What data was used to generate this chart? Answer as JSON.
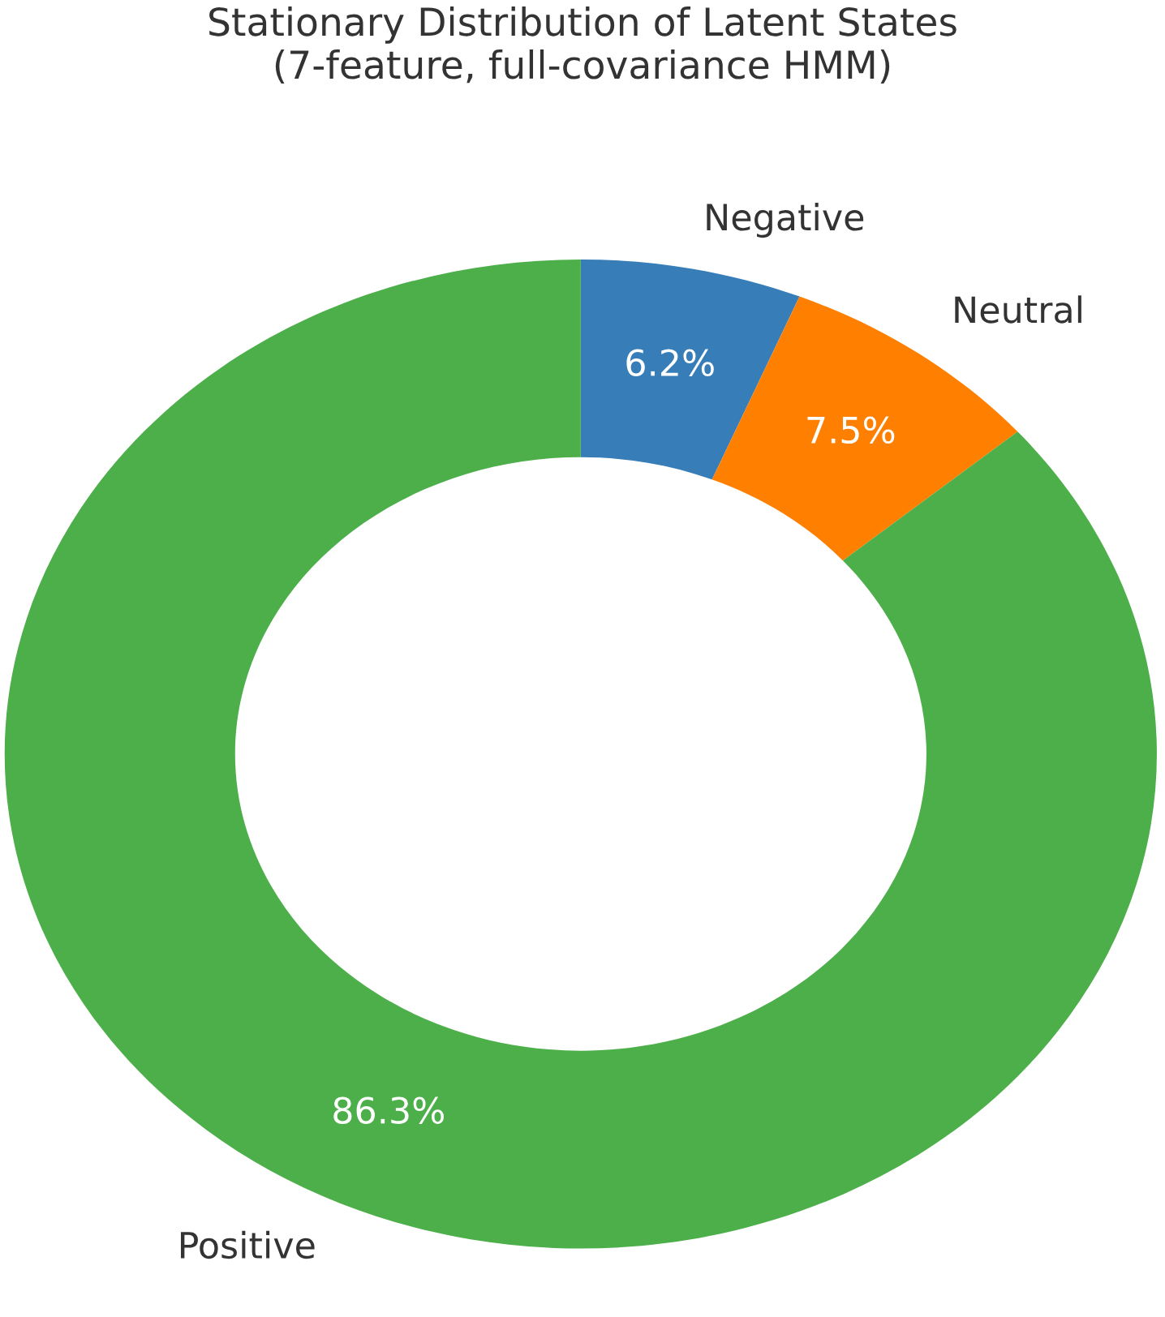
{
  "chart_data": {
    "type": "donut",
    "title": "Stationary Distribution of Latent States\n(7-feature, full-covariance HMM)",
    "categories": [
      "Negative",
      "Neutral",
      "Positive"
    ],
    "values": [
      6.2,
      7.5,
      86.3
    ],
    "colors": [
      "#377eb8",
      "#ff7f00",
      "#4daf4a"
    ],
    "value_labels": [
      "6.2%",
      "7.5%",
      "86.3%"
    ]
  }
}
